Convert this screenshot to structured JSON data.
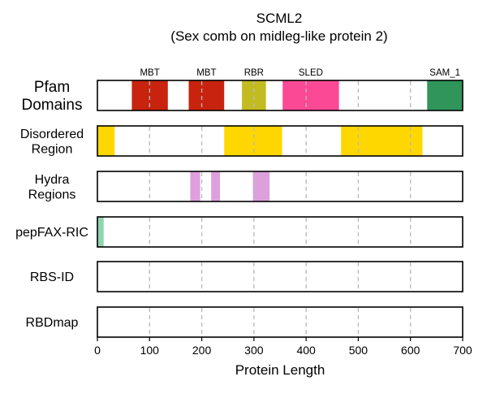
{
  "chart_data": {
    "type": "domain-track",
    "title": "SCML2",
    "subtitle": "(Sex comb on midleg-like protein 2)",
    "xlabel": "Protein Length",
    "xlim": [
      0,
      700
    ],
    "xticks": [
      0,
      100,
      200,
      300,
      400,
      500,
      600,
      700
    ],
    "xtick_labels": [
      "0",
      "100",
      "200",
      "300",
      "400",
      "500",
      "600",
      "700"
    ],
    "grid": "vertical dashed at 100-unit ticks",
    "tracks": [
      {
        "label_lines": [
          "Pfam",
          "Domains"
        ],
        "segments": [
          {
            "start": 66,
            "end": 135,
            "color": "#C8230F",
            "label": "MBT"
          },
          {
            "start": 175,
            "end": 243,
            "color": "#C8230F",
            "label": "MBT"
          },
          {
            "start": 277,
            "end": 323,
            "color": "#C3BB22",
            "label": "RBR"
          },
          {
            "start": 355,
            "end": 463,
            "color": "#FB4996",
            "label": "SLED"
          },
          {
            "start": 632,
            "end": 700,
            "color": "#2F955B",
            "label": "SAM_1"
          }
        ]
      },
      {
        "label_lines": [
          "Disordered",
          "Region"
        ],
        "segments": [
          {
            "start": 0,
            "end": 33,
            "color": "#FFD700"
          },
          {
            "start": 243,
            "end": 354,
            "color": "#FFD700"
          },
          {
            "start": 467,
            "end": 623,
            "color": "#FFD700"
          }
        ]
      },
      {
        "label_lines": [
          "Hydra",
          "Regions"
        ],
        "segments": [
          {
            "start": 178,
            "end": 197,
            "color": "#DDA0DD"
          },
          {
            "start": 218,
            "end": 235,
            "color": "#DDA0DD"
          },
          {
            "start": 298,
            "end": 330,
            "color": "#DDA0DD"
          }
        ]
      },
      {
        "label_lines": [
          "pepFAX-RIC"
        ],
        "segments": [
          {
            "start": 0,
            "end": 12,
            "color": "#8FD5B0"
          }
        ]
      },
      {
        "label_lines": [
          "RBS-ID"
        ],
        "segments": []
      },
      {
        "label_lines": [
          "RBDmap"
        ],
        "segments": []
      }
    ]
  }
}
